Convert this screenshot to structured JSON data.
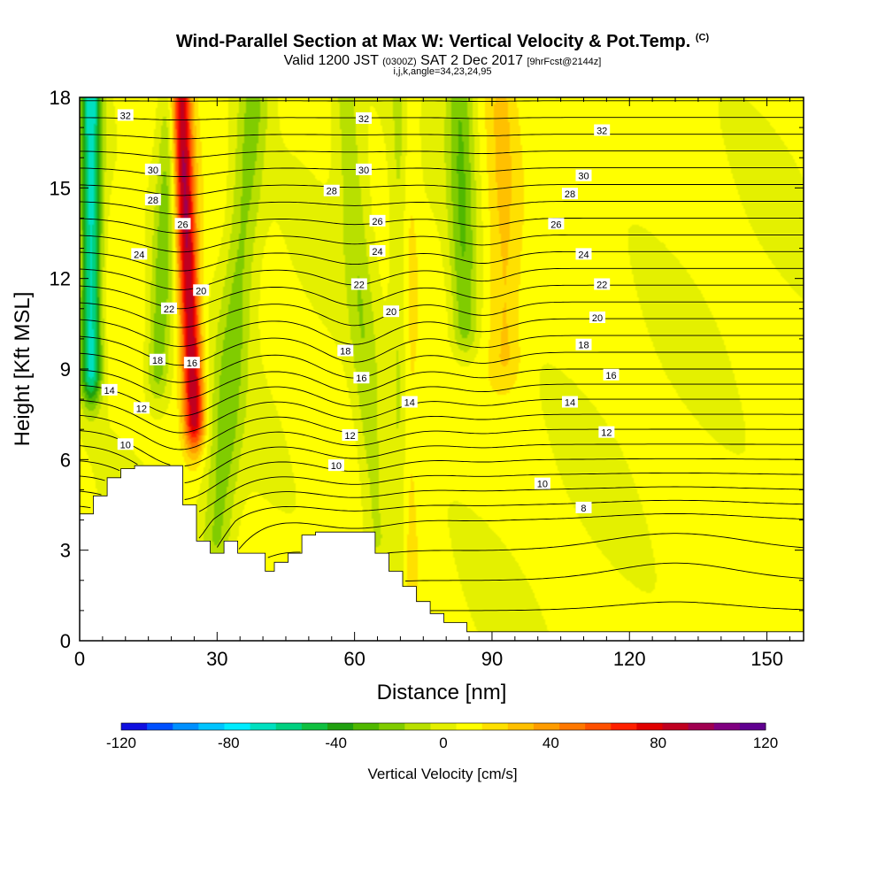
{
  "title": {
    "main": "Wind-Parallel Section at Max W: Vertical Velocity & Pot.Temp.",
    "mark": "(C)",
    "valid_a": "Valid 1200 JST ",
    "valid_b": "(0300Z)",
    "valid_c": " SAT 2 Dec 2017 ",
    "valid_d": "[9hrFcst@2144z]",
    "grid": "i,j,k,angle=34,23,24,95"
  },
  "chart_data": {
    "type": "heatmap",
    "title": "Wind-Parallel Section at Max W: Vertical Velocity & Pot.Temp.",
    "xlabel": "Distance [nm]",
    "ylabel": "Height [Kft MSL]",
    "xlim": [
      0,
      158
    ],
    "ylim": [
      0,
      18
    ],
    "x_ticks": [
      0,
      30,
      60,
      90,
      120,
      150
    ],
    "y_ticks": [
      0,
      3,
      6,
      9,
      12,
      15,
      18
    ],
    "terrain": {
      "x": [
        0,
        3,
        3,
        6,
        6,
        9,
        9,
        12,
        12,
        16,
        16,
        22.5,
        22.5,
        25.5,
        25.5,
        28.5,
        28.5,
        31.5,
        31.5,
        34.5,
        34.5,
        40.5,
        40.5,
        42.5,
        42.5,
        45.5,
        45.5,
        48.5,
        48.5,
        51.5,
        51.5,
        54.5,
        54.5,
        64.5,
        64.5,
        67.5,
        67.5,
        70.5,
        70.5,
        73.5,
        73.5,
        76.5,
        76.5,
        79.5,
        79.5,
        84.5,
        84.5,
        158
      ],
      "y": [
        4.2,
        4.2,
        4.8,
        4.8,
        5.4,
        5.4,
        5.7,
        5.7,
        5.8,
        5.8,
        5.8,
        5.8,
        4.5,
        4.5,
        3.3,
        3.3,
        2.9,
        2.9,
        3.3,
        3.3,
        2.9,
        2.9,
        2.3,
        2.3,
        2.6,
        2.6,
        2.9,
        2.9,
        3.5,
        3.5,
        3.6,
        3.6,
        3.6,
        3.6,
        2.9,
        2.9,
        2.3,
        2.3,
        1.8,
        1.8,
        1.3,
        1.3,
        0.9,
        0.9,
        0.6,
        0.6,
        0.3,
        0.3
      ]
    },
    "vertical_velocity_features": [
      {
        "kind": "updraft",
        "x_bottom": 25,
        "x_top": 22,
        "y_bottom": 7.5,
        "y_top": 18,
        "w_max": 85,
        "half_width": 2.2
      },
      {
        "kind": "downdraft",
        "x_bottom": 2.5,
        "x_top": 2.5,
        "y_bottom": 9,
        "y_top": 18,
        "w_max": -75,
        "half_width": 2.2
      },
      {
        "kind": "downdraft",
        "x_bottom": 17,
        "x_top": 20,
        "y_bottom": 9,
        "y_top": 18,
        "w_max": -28,
        "half_width": 2.5
      },
      {
        "kind": "downdraft",
        "x_bottom": 30,
        "x_top": 38,
        "y_bottom": 3.5,
        "y_top": 18,
        "w_max": -25,
        "half_width": 3.5
      },
      {
        "kind": "downdraft",
        "x_bottom": 65,
        "x_top": 58,
        "y_bottom": 3.5,
        "y_top": 18,
        "w_max": -18,
        "half_width": 3
      },
      {
        "kind": "downdraft",
        "x_bottom": 84,
        "x_top": 83,
        "y_bottom": 10.5,
        "y_top": 18,
        "w_max": -30,
        "half_width": 3
      },
      {
        "kind": "downdraft",
        "x_bottom": 70,
        "x_top": 70,
        "y_bottom": 1.5,
        "y_top": 6.5,
        "w_max": -25,
        "half_width": 2
      },
      {
        "kind": "updraft",
        "x_bottom": 93,
        "x_top": 92,
        "y_bottom": 9.5,
        "y_top": 18,
        "w_max": 18,
        "half_width": 3.5
      },
      {
        "kind": "updraft",
        "x_bottom": 71,
        "x_top": 71,
        "y_bottom": 0.5,
        "y_top": 5,
        "w_max": 18,
        "half_width": 2.5
      }
    ],
    "theta_contours": [
      {
        "label": "8",
        "label_x": 110,
        "label_y": 4.4
      },
      {
        "label": "10",
        "label_x": 10,
        "label_y": 6.5
      },
      {
        "label": "10",
        "label_x": 56,
        "label_y": 5.8
      },
      {
        "label": "10",
        "label_x": 101,
        "label_y": 5.2
      },
      {
        "label": "12",
        "label_x": 13.5,
        "label_y": 7.7
      },
      {
        "label": "12",
        "label_x": 59,
        "label_y": 6.8
      },
      {
        "label": "12",
        "label_x": 115,
        "label_y": 6.9
      },
      {
        "label": "14",
        "label_x": 6.5,
        "label_y": 8.3
      },
      {
        "label": "14",
        "label_x": 72,
        "label_y": 7.9
      },
      {
        "label": "14",
        "label_x": 107,
        "label_y": 7.9
      },
      {
        "label": "16",
        "label_x": 24.5,
        "label_y": 9.2
      },
      {
        "label": "16",
        "label_x": 61.5,
        "label_y": 8.7
      },
      {
        "label": "16",
        "label_x": 116,
        "label_y": 8.8
      },
      {
        "label": "18",
        "label_x": 17,
        "label_y": 9.3
      },
      {
        "label": "18",
        "label_x": 58,
        "label_y": 9.6
      },
      {
        "label": "18",
        "label_x": 110,
        "label_y": 9.8
      },
      {
        "label": "20",
        "label_x": 26.5,
        "label_y": 11.6
      },
      {
        "label": "20",
        "label_x": 68,
        "label_y": 10.9
      },
      {
        "label": "20",
        "label_x": 113,
        "label_y": 10.7
      },
      {
        "label": "22",
        "label_x": 19.5,
        "label_y": 11
      },
      {
        "label": "22",
        "label_x": 61,
        "label_y": 11.8
      },
      {
        "label": "22",
        "label_x": 114,
        "label_y": 11.8
      },
      {
        "label": "24",
        "label_x": 13,
        "label_y": 12.8
      },
      {
        "label": "24",
        "label_x": 65,
        "label_y": 12.9
      },
      {
        "label": "24",
        "label_x": 110,
        "label_y": 12.8
      },
      {
        "label": "26",
        "label_x": 22.5,
        "label_y": 13.8
      },
      {
        "label": "26",
        "label_x": 65,
        "label_y": 13.9
      },
      {
        "label": "26",
        "label_x": 104,
        "label_y": 13.8
      },
      {
        "label": "28",
        "label_x": 16,
        "label_y": 14.6
      },
      {
        "label": "28",
        "label_x": 55,
        "label_y": 14.9
      },
      {
        "label": "28",
        "label_x": 107,
        "label_y": 14.8
      },
      {
        "label": "30",
        "label_x": 16,
        "label_y": 15.6
      },
      {
        "label": "30",
        "label_x": 62,
        "label_y": 15.6
      },
      {
        "label": "30",
        "label_x": 110,
        "label_y": 15.4
      },
      {
        "label": "32",
        "label_x": 10,
        "label_y": 17.4
      },
      {
        "label": "32",
        "label_x": 62,
        "label_y": 17.3
      },
      {
        "label": "32",
        "label_x": 114,
        "label_y": 16.9
      }
    ],
    "colorbar": {
      "label": "Vertical Velocity [cm/s]",
      "range": [
        -120,
        120
      ],
      "tick_labels": [
        "-120",
        "-80",
        "-40",
        "0",
        "40",
        "80",
        "120"
      ],
      "tick_values": [
        -120,
        -80,
        -40,
        0,
        40,
        80,
        120
      ],
      "colors": [
        "#1010e0",
        "#0050ff",
        "#0090ff",
        "#00c4ff",
        "#00ecff",
        "#00e0c0",
        "#00d080",
        "#10c040",
        "#20a010",
        "#50b800",
        "#80cc00",
        "#b8e000",
        "#e4f000",
        "#ffff00",
        "#ffe000",
        "#ffc000",
        "#ff9c00",
        "#ff7800",
        "#ff5000",
        "#ff2000",
        "#e00000",
        "#c00020",
        "#a00050",
        "#800080",
        "#600090"
      ]
    }
  }
}
